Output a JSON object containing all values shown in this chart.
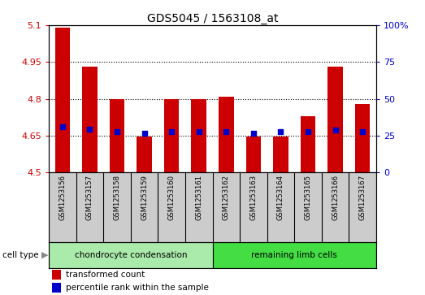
{
  "title": "GDS5045 / 1563108_at",
  "samples": [
    "GSM1253156",
    "GSM1253157",
    "GSM1253158",
    "GSM1253159",
    "GSM1253160",
    "GSM1253161",
    "GSM1253162",
    "GSM1253163",
    "GSM1253164",
    "GSM1253165",
    "GSM1253166",
    "GSM1253167"
  ],
  "bar_values": [
    5.09,
    4.93,
    4.8,
    4.645,
    4.8,
    4.8,
    4.81,
    4.645,
    4.645,
    4.73,
    4.93,
    4.78
  ],
  "percentile_values": [
    4.685,
    4.675,
    4.666,
    4.66,
    4.668,
    4.666,
    4.665,
    4.661,
    4.665,
    4.668,
    4.672,
    4.667
  ],
  "bar_bottom": 4.5,
  "ylim_left": [
    4.5,
    5.1
  ],
  "ylim_right": [
    0,
    100
  ],
  "yticks_left": [
    4.5,
    4.65,
    4.8,
    4.95,
    5.1
  ],
  "ytick_labels_left": [
    "4.5",
    "4.65",
    "4.8",
    "4.95",
    "5.1"
  ],
  "yticks_right": [
    0,
    25,
    50,
    75,
    100
  ],
  "ytick_labels_right": [
    "0",
    "25",
    "50",
    "75",
    "100%"
  ],
  "bar_color": "#cc0000",
  "dot_color": "#0000cc",
  "tick_color_left": "#cc0000",
  "tick_color_right": "#0000cc",
  "cell_type_groups": [
    {
      "label": "chondrocyte condensation",
      "start": 0,
      "end": 5,
      "color": "#aaeaaa"
    },
    {
      "label": "remaining limb cells",
      "start": 6,
      "end": 11,
      "color": "#44dd44"
    }
  ],
  "cell_type_label": "cell type",
  "legend_items": [
    {
      "color": "#cc0000",
      "label": "transformed count"
    },
    {
      "color": "#0000cc",
      "label": "percentile rank within the sample"
    }
  ],
  "bar_width": 0.55,
  "sample_area_color": "#cccccc",
  "background_color": "#ffffff"
}
